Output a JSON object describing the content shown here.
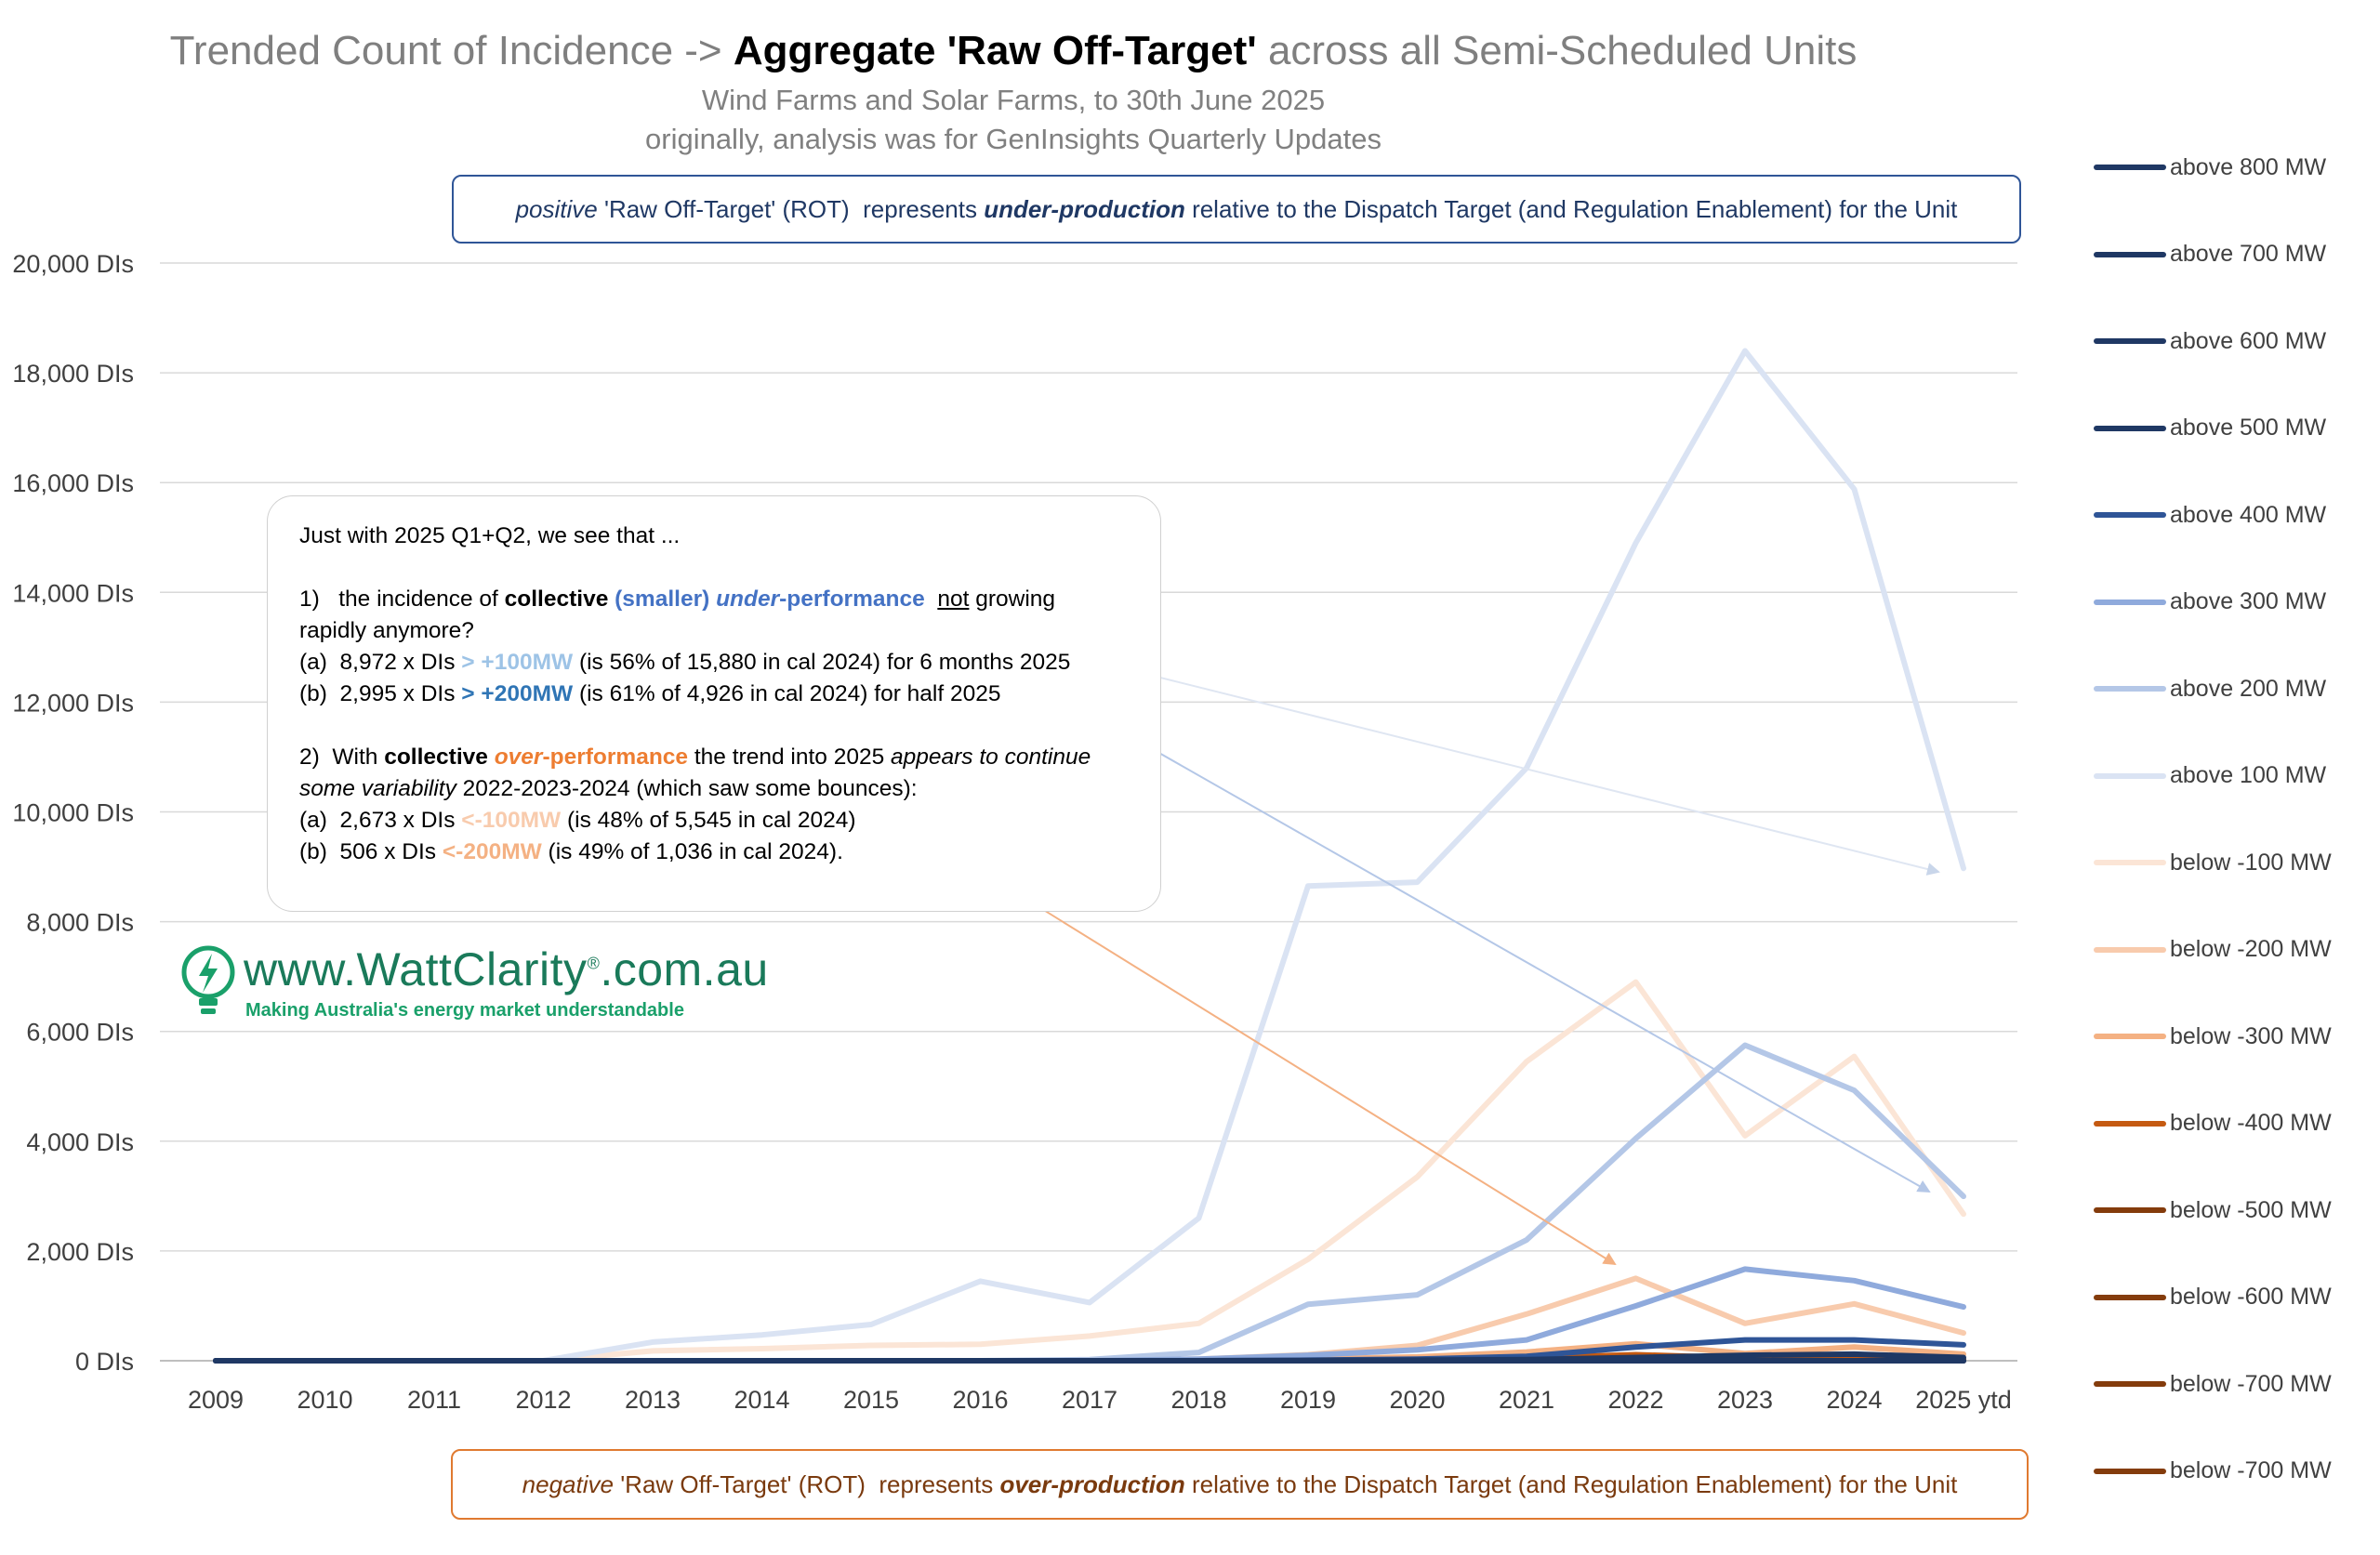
{
  "title": {
    "prefix": "Trended Count of Incidence ->",
    "bold": "Aggregate 'Raw Off-Target'",
    "suffix": "across all Semi-Scheduled Units",
    "subtitle1": "Wind Farms and Solar Farms, to 30th June 2025",
    "subtitle2": "originally, analysis was for GenInsights Quarterly Updates"
  },
  "positive_box": {
    "p1": "positive",
    "p2": " 'Raw Off-Target' (ROT)  represents ",
    "p3": "under-production",
    "p4": " relative to the Dispatch Target (and Regulation Enablement) for the Unit"
  },
  "negative_box": {
    "p1": "negative",
    "p2": " 'Raw Off-Target' (ROT)  represents ",
    "p3": "over-production",
    "p4": " relative to the Dispatch Target (and Regulation Enablement) for the Unit"
  },
  "note": {
    "intro": "Just with 2025 Q1+Q2, we see that ...",
    "s1_a": "1)   the incidence of ",
    "s1_b": "collective",
    "s1_c": " (smaller) ",
    "s1_d": "under",
    "s1_e": "-performance",
    "s1_f": "  ",
    "s1_g": "not",
    "s1_h": " growing",
    "s1_line2": "rapidly anymore?",
    "s1a_a": "(a)  8,972 x DIs ",
    "s1a_b": "> +100MW",
    "s1a_c": " (is 56% of 15,880 in cal 2024) for 6 months 2025",
    "s1b_a": "(b)  2,995 x DIs ",
    "s1b_b": "> +200MW",
    "s1b_c": " (is 61% of 4,926 in cal 2024) for half 2025",
    "s2_a": "2)  With ",
    "s2_b": "collective",
    "s2_c": " ",
    "s2_d": "over",
    "s2_e": "-performance",
    "s2_f": " the trend into 2025 ",
    "s2_g": "appears to continue",
    "s2_line2a": "some variability",
    "s2_line2b": " 2022-2023-2024 (which saw some bounces):",
    "s2a_a": "(a)  2,673 x DIs ",
    "s2a_b": "<-100MW",
    "s2a_c": " (is 48% of 5,545 in cal 2024)",
    "s2b_a": "(b)  506 x DIs ",
    "s2b_b": "<-200MW",
    "s2b_c": " (is 49% of 1,036 in cal 2024)."
  },
  "logo": {
    "text": "www.WattClarity",
    "reg": "®",
    "suffix": ".com.au",
    "tagline": "Making Australia's energy market understandable"
  },
  "colors": {
    "above100": "#dae3f3",
    "above200": "#b4c7e7",
    "above300": "#8faadc",
    "above400": "#2f5597",
    "dark_navy": "#1f3864",
    "below100": "#fbe5d6",
    "below200": "#f8cbad",
    "below300": "#f4b183",
    "below400": "#c55a11",
    "dark_brown": "#843c0c"
  },
  "chart_data": {
    "type": "line",
    "x": [
      "2009",
      "2010",
      "2011",
      "2012",
      "2013",
      "2014",
      "2015",
      "2016",
      "2017",
      "2018",
      "2019",
      "2020",
      "2021",
      "2022",
      "2023",
      "2024",
      "2025 ytd"
    ],
    "ylim": [
      0,
      20000
    ],
    "yticks": [
      {
        "value": 0,
        "label": "0 DIs"
      },
      {
        "value": 2000,
        "label": "2,000 DIs"
      },
      {
        "value": 4000,
        "label": "4,000 DIs"
      },
      {
        "value": 6000,
        "label": "6,000 DIs"
      },
      {
        "value": 8000,
        "label": "8,000 DIs"
      },
      {
        "value": 10000,
        "label": "10,000 DIs"
      },
      {
        "value": 12000,
        "label": "12,000 DIs"
      },
      {
        "value": 14000,
        "label": "14,000 DIs"
      },
      {
        "value": 16000,
        "label": "16,000 DIs"
      },
      {
        "value": 18000,
        "label": "18,000 DIs"
      },
      {
        "value": 20000,
        "label": "20,000 DIs"
      }
    ],
    "grid": true,
    "legend_position": "right",
    "series": [
      {
        "name": "above 800 MW",
        "color": "#1f3864",
        "width": 6,
        "values": [
          0,
          0,
          0,
          0,
          0,
          0,
          0,
          0,
          0,
          0,
          0,
          0,
          0,
          0,
          0,
          0,
          0
        ]
      },
      {
        "name": "above 700 MW",
        "color": "#1f3864",
        "width": 6,
        "values": [
          0,
          0,
          0,
          0,
          0,
          0,
          0,
          0,
          0,
          0,
          0,
          0,
          0,
          0,
          0,
          0,
          0
        ]
      },
      {
        "name": "above 600 MW",
        "color": "#203864",
        "width": 6,
        "values": [
          0,
          0,
          0,
          0,
          0,
          0,
          0,
          0,
          0,
          0,
          0,
          0,
          0,
          0,
          0,
          0,
          0
        ]
      },
      {
        "name": "above 500 MW",
        "color": "#1f3864",
        "width": 6,
        "values": [
          0,
          0,
          0,
          0,
          0,
          0,
          0,
          0,
          0,
          0,
          5,
          10,
          20,
          60,
          100,
          120,
          60
        ]
      },
      {
        "name": "above 400 MW",
        "color": "#2f5597",
        "width": 6,
        "values": [
          0,
          0,
          0,
          0,
          0,
          0,
          0,
          0,
          0,
          0,
          10,
          30,
          80,
          250,
          380,
          380,
          290
        ]
      },
      {
        "name": "above 300 MW",
        "color": "#8faadc",
        "width": 6,
        "values": [
          0,
          0,
          0,
          0,
          0,
          0,
          0,
          0,
          0,
          30,
          100,
          200,
          380,
          1000,
          1670,
          1460,
          980
        ]
      },
      {
        "name": "above 200 MW",
        "color": "#b4c7e7",
        "width": 6,
        "values": [
          0,
          0,
          0,
          0,
          0,
          0,
          0,
          0,
          20,
          150,
          1030,
          1200,
          2200,
          4050,
          5750,
          4926,
          2995
        ]
      },
      {
        "name": "above 100 MW",
        "color": "#dae3f3",
        "width": 6,
        "values": [
          0,
          0,
          0,
          0,
          340,
          470,
          660,
          1450,
          1060,
          2600,
          8650,
          8720,
          10800,
          14900,
          18400,
          15880,
          8972
        ]
      },
      {
        "name": "below -100 MW",
        "color": "#fbe5d6",
        "width": 6,
        "values": [
          0,
          0,
          0,
          0,
          180,
          220,
          280,
          300,
          450,
          680,
          1850,
          3350,
          5450,
          6900,
          4100,
          5545,
          2673
        ]
      },
      {
        "name": "below -200 MW",
        "color": "#f8cbad",
        "width": 6,
        "values": [
          0,
          0,
          0,
          0,
          0,
          0,
          0,
          0,
          0,
          30,
          110,
          280,
          850,
          1500,
          680,
          1036,
          506
        ]
      },
      {
        "name": "below -300 MW",
        "color": "#f4b183",
        "width": 6,
        "values": [
          0,
          0,
          0,
          0,
          0,
          0,
          0,
          0,
          0,
          5,
          30,
          70,
          160,
          310,
          130,
          250,
          120
        ]
      },
      {
        "name": "below -400 MW",
        "color": "#c55a11",
        "width": 6,
        "values": [
          0,
          0,
          0,
          0,
          0,
          0,
          0,
          0,
          0,
          0,
          10,
          20,
          50,
          110,
          50,
          90,
          40
        ]
      },
      {
        "name": "below -500 MW",
        "color": "#843c0c",
        "width": 6,
        "values": [
          0,
          0,
          0,
          0,
          0,
          0,
          0,
          0,
          0,
          0,
          0,
          5,
          15,
          40,
          20,
          30,
          15
        ]
      },
      {
        "name": "below -600 MW",
        "color": "#843c0c",
        "width": 6,
        "values": [
          0,
          0,
          0,
          0,
          0,
          0,
          0,
          0,
          0,
          0,
          0,
          0,
          5,
          15,
          5,
          10,
          5
        ]
      },
      {
        "name": "below -700 MW",
        "color": "#843c0c",
        "width": 6,
        "values": [
          0,
          0,
          0,
          0,
          0,
          0,
          0,
          0,
          0,
          0,
          0,
          0,
          0,
          5,
          0,
          5,
          0
        ]
      },
      {
        "name": "below -700 MW",
        "color": "#843c0c",
        "width": 6,
        "values": [
          0,
          0,
          0,
          0,
          0,
          0,
          0,
          0,
          0,
          0,
          0,
          0,
          0,
          0,
          0,
          0,
          0
        ]
      }
    ]
  }
}
